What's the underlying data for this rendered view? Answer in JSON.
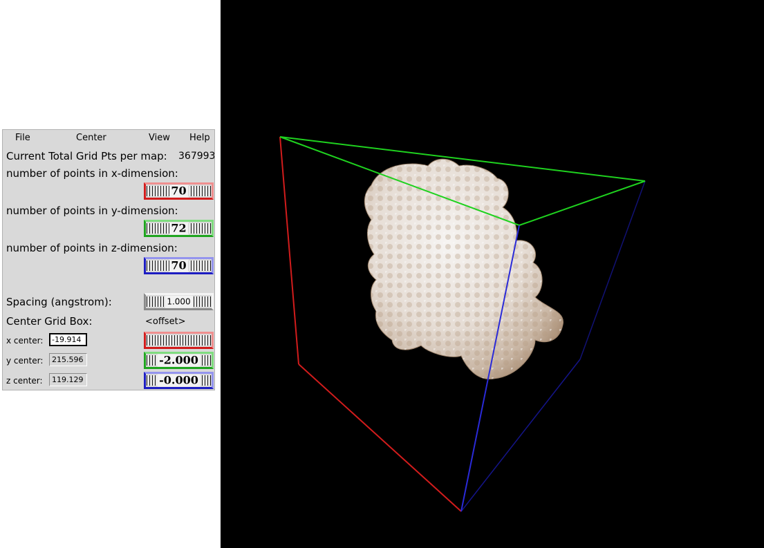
{
  "menu": {
    "file": "File",
    "center": "Center",
    "view": "View",
    "help": "Help"
  },
  "total": {
    "label": "Current Total Grid Pts per map:",
    "value": "367993"
  },
  "x_dim": {
    "label": "number of points in x-dimension:",
    "value": "70"
  },
  "y_dim": {
    "label": "number of points in y-dimension:",
    "value": "72"
  },
  "z_dim": {
    "label": "number of points in z-dimension:",
    "value": "70"
  },
  "spacing": {
    "label": "Spacing (angstrom):",
    "value": "1.000"
  },
  "center_box": {
    "label": "Center Grid Box:",
    "offset_label": "<offset>"
  },
  "x_center": {
    "label": "x center:",
    "value": "-19.914",
    "offset": ""
  },
  "y_center": {
    "label": "y center:",
    "value": "215.596",
    "offset": "-2.000"
  },
  "z_center": {
    "label": "z center:",
    "value": "119.129",
    "offset": "-0.000"
  },
  "colors": {
    "x_axis": "#d21c1c",
    "y_axis": "#1fd21f",
    "z_axis": "#1d1dc2",
    "viewer_bg": "#000000"
  }
}
